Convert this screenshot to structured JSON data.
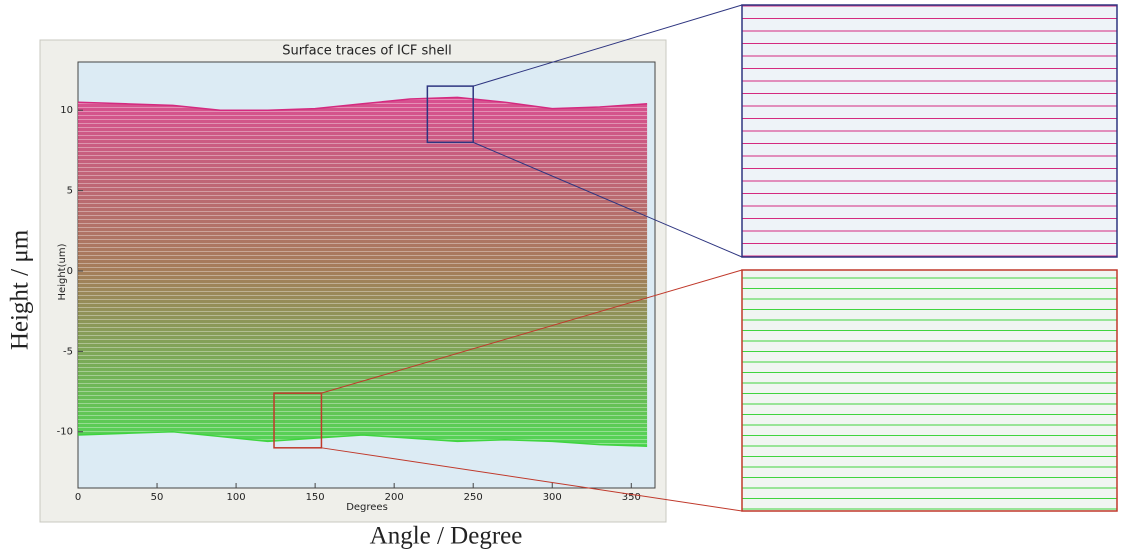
{
  "chart_data": {
    "type": "line",
    "title": "Surface traces of ICF shell",
    "x_label": "Degrees",
    "y_label": "Height(um)",
    "figure_x_label": "Angle / Degree",
    "figure_y_label": "Height / μm",
    "xlim": [
      0,
      365
    ],
    "ylim": [
      -13.5,
      13
    ],
    "xticks": [
      0,
      50,
      100,
      150,
      200,
      250,
      300,
      350
    ],
    "yticks": [
      -10,
      -5,
      0,
      5,
      10
    ],
    "x": [
      0,
      30,
      60,
      90,
      120,
      150,
      180,
      210,
      240,
      270,
      300,
      330,
      360
    ],
    "series": [
      {
        "color": "#d42a7f",
        "values": [
          10.5,
          10.4,
          10.3,
          10.0,
          10.0,
          10.1,
          10.4,
          10.7,
          10.8,
          10.5,
          10.1,
          10.2,
          10.4
        ]
      },
      {
        "color": "#3fd43f",
        "values": [
          -10.2,
          -10.1,
          -10.0,
          -10.3,
          -10.6,
          -10.4,
          -10.2,
          -10.4,
          -10.6,
          -10.5,
          -10.6,
          -10.8,
          -10.9
        ]
      }
    ],
    "band_colors": [
      "#d8347f",
      "#9a6a3e",
      "#3ad23a"
    ],
    "zoom_boxes": [
      {
        "xlim": [
          221,
          250
        ],
        "ylim": [
          8,
          11.5
        ],
        "color": "#2e3580"
      },
      {
        "xlim": [
          124,
          154
        ],
        "ylim": [
          -11,
          -7.6
        ],
        "color": "#c0392b"
      }
    ]
  }
}
